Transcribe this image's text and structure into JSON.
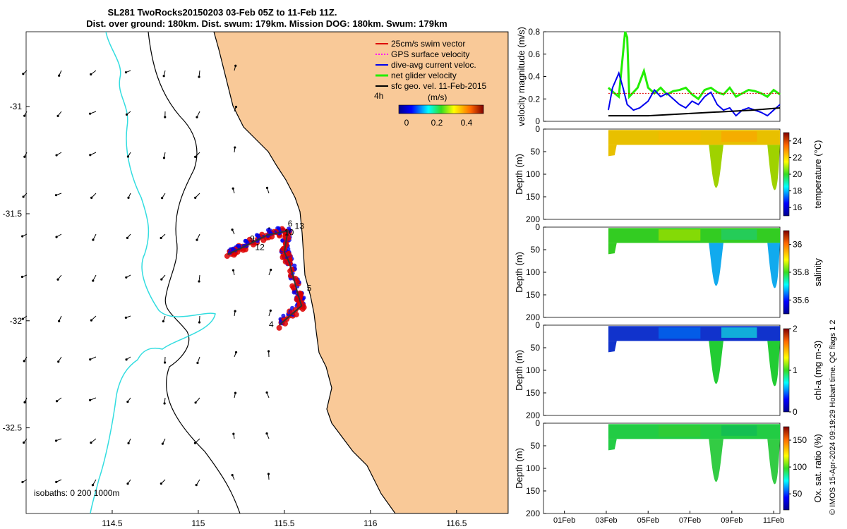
{
  "title_line1": "SL281 TwoRocks20150203 03-Feb 05Z to 11-Feb 11Z.",
  "title_line2": "Dist. over ground: 180km. Dist. swum: 179km. Mission DOG: 180km. Swum: 179km",
  "footer_text": "© IMOS 15-Apr-2024 09:19:29 Hobart time. QC flags 1  2",
  "colors": {
    "land": "#f9c998",
    "isobath_200": "#000000",
    "isobath_1000": "#33dde0",
    "swim_vector": "#dd0000",
    "gps_velocity": "#ff00ff",
    "dive_avg": "#0000ee",
    "net_glider": "#22ee00",
    "sfc_geo": "#000000"
  },
  "chart_data": [
    {
      "type": "map",
      "name": "glider-track-map",
      "xlim": [
        114.0,
        116.8
      ],
      "ylim": [
        -32.9,
        -30.65
      ],
      "x_ticks": [
        "114.5",
        "115",
        "115.5",
        "116",
        "116.5"
      ],
      "y_ticks": [
        "-31",
        "-31.5",
        "-32",
        "-32.5"
      ],
      "legend": [
        {
          "label": "25cm/s swim vector",
          "color": "#dd0000"
        },
        {
          "label": "GPS surface velocity",
          "color": "#ff00ff"
        },
        {
          "label": "dive-avg current veloc.",
          "color": "#0000ee"
        },
        {
          "label": "net glider velocity",
          "color": "#22ee00"
        },
        {
          "label": "sfc geo. vel. 11-Feb-2015",
          "color": "#000000"
        }
      ],
      "legend_placement": "top-right",
      "time_marker_label": "4h",
      "colorbar_title": "(m/s)",
      "colorbar_ticks": [
        "0",
        "0.2",
        "0.4"
      ],
      "isobath_label": "isobaths: 0   200  1000m",
      "day_labels": [
        {
          "text": "6",
          "lon": 115.52,
          "lat": -31.56
        },
        {
          "text": "13",
          "lon": 115.56,
          "lat": -31.57
        },
        {
          "text": "10",
          "lon": 115.5,
          "lat": -31.6
        },
        {
          "text": "9",
          "lon": 115.3,
          "lat": -31.63
        },
        {
          "text": "12",
          "lon": 115.33,
          "lat": -31.67
        },
        {
          "text": "5",
          "lon": 115.63,
          "lat": -31.86
        },
        {
          "text": "4",
          "lon": 115.41,
          "lat": -32.03
        }
      ],
      "glider_track": [
        [
          115.47,
          -32.02
        ],
        [
          115.6,
          -31.93
        ],
        [
          115.58,
          -31.88
        ],
        [
          115.53,
          -31.73
        ],
        [
          115.5,
          -31.68
        ],
        [
          115.52,
          -31.58
        ],
        [
          115.4,
          -31.6
        ],
        [
          115.25,
          -31.66
        ],
        [
          115.17,
          -31.69
        ]
      ]
    },
    {
      "type": "line",
      "name": "velocity-magnitude",
      "ylabel": "velocity magnitude (m/s)",
      "ylim": [
        0,
        0.8
      ],
      "y_ticks": [
        "0",
        "0.2",
        "0.4",
        "0.6",
        "0.8"
      ],
      "series": [
        {
          "color": "#22ee00",
          "x": [
            3.1,
            3.4,
            3.6,
            3.9,
            4.0,
            4.1,
            4.5,
            4.8,
            5.0,
            5.3,
            5.6,
            5.9,
            6.2,
            6.5,
            6.8,
            7.1,
            7.4,
            7.7,
            8.0,
            8.3,
            8.6,
            8.9,
            9.2,
            9.5,
            9.8,
            10.1,
            10.4,
            10.7,
            11.0,
            11.3
          ],
          "y": [
            0.3,
            0.25,
            0.22,
            0.8,
            0.75,
            0.22,
            0.3,
            0.45,
            0.3,
            0.25,
            0.3,
            0.24,
            0.27,
            0.28,
            0.3,
            0.24,
            0.2,
            0.28,
            0.3,
            0.26,
            0.24,
            0.3,
            0.22,
            0.25,
            0.28,
            0.27,
            0.25,
            0.22,
            0.28,
            0.24
          ]
        },
        {
          "color": "#dd0000",
          "x": [
            3.1,
            11.3
          ],
          "y": [
            0.25,
            0.25
          ]
        },
        {
          "color": "#0000ee",
          "x": [
            3.1,
            3.3,
            3.6,
            3.8,
            4.0,
            4.3,
            4.6,
            5.0,
            5.3,
            5.6,
            5.9,
            6.2,
            6.5,
            6.8,
            7.1,
            7.4,
            7.7,
            8.0,
            8.3,
            8.6,
            8.9,
            9.2,
            9.5,
            9.8,
            10.1,
            10.4,
            10.7,
            11.0,
            11.3
          ],
          "y": [
            0.1,
            0.3,
            0.43,
            0.3,
            0.15,
            0.1,
            0.12,
            0.18,
            0.28,
            0.22,
            0.25,
            0.2,
            0.15,
            0.12,
            0.18,
            0.15,
            0.22,
            0.26,
            0.15,
            0.1,
            0.12,
            0.05,
            0.1,
            0.12,
            0.1,
            0.08,
            0.05,
            0.1,
            0.15
          ]
        },
        {
          "color": "#000000",
          "x": [
            3.1,
            4.0,
            5.0,
            6.0,
            7.0,
            8.0,
            9.0,
            10.0,
            11.3
          ],
          "y": [
            0.05,
            0.05,
            0.05,
            0.06,
            0.07,
            0.08,
            0.09,
            0.1,
            0.12
          ]
        }
      ]
    },
    {
      "type": "heatmap",
      "name": "temperature-section",
      "ylabel": "Depth (m)",
      "colorbar_label": "temperature (°C)",
      "colorbar_ticks": [
        "16",
        "18",
        "20",
        "22",
        "24"
      ],
      "clim": [
        15,
        25
      ],
      "y_ticks": [
        "0",
        "50",
        "100",
        "150",
        "200"
      ]
    },
    {
      "type": "heatmap",
      "name": "salinity-section",
      "ylabel": "Depth (m)",
      "colorbar_label": "salinity",
      "colorbar_ticks": [
        "35.6",
        "35.8",
        "36"
      ],
      "clim": [
        35.5,
        36.1
      ],
      "y_ticks": [
        "0",
        "50",
        "100",
        "150",
        "200"
      ]
    },
    {
      "type": "heatmap",
      "name": "chlorophyll-section",
      "ylabel": "Depth (m)",
      "colorbar_label": "chl-a (mg m-3)",
      "colorbar_ticks": [
        "0",
        "1",
        "2"
      ],
      "clim": [
        0,
        2
      ],
      "y_ticks": [
        "0",
        "50",
        "100",
        "150",
        "200"
      ]
    },
    {
      "type": "heatmap",
      "name": "oxygen-section",
      "ylabel": "Depth (m)",
      "colorbar_label": "Ox. sat. ratio (%)",
      "colorbar_ticks": [
        "50",
        "100",
        "150"
      ],
      "clim": [
        20,
        175
      ],
      "y_ticks": [
        "0",
        "50",
        "100",
        "150",
        "200"
      ],
      "x_ticks": [
        "01Feb",
        "03Feb",
        "05Feb",
        "07Feb",
        "09Feb",
        "11Feb"
      ]
    }
  ]
}
